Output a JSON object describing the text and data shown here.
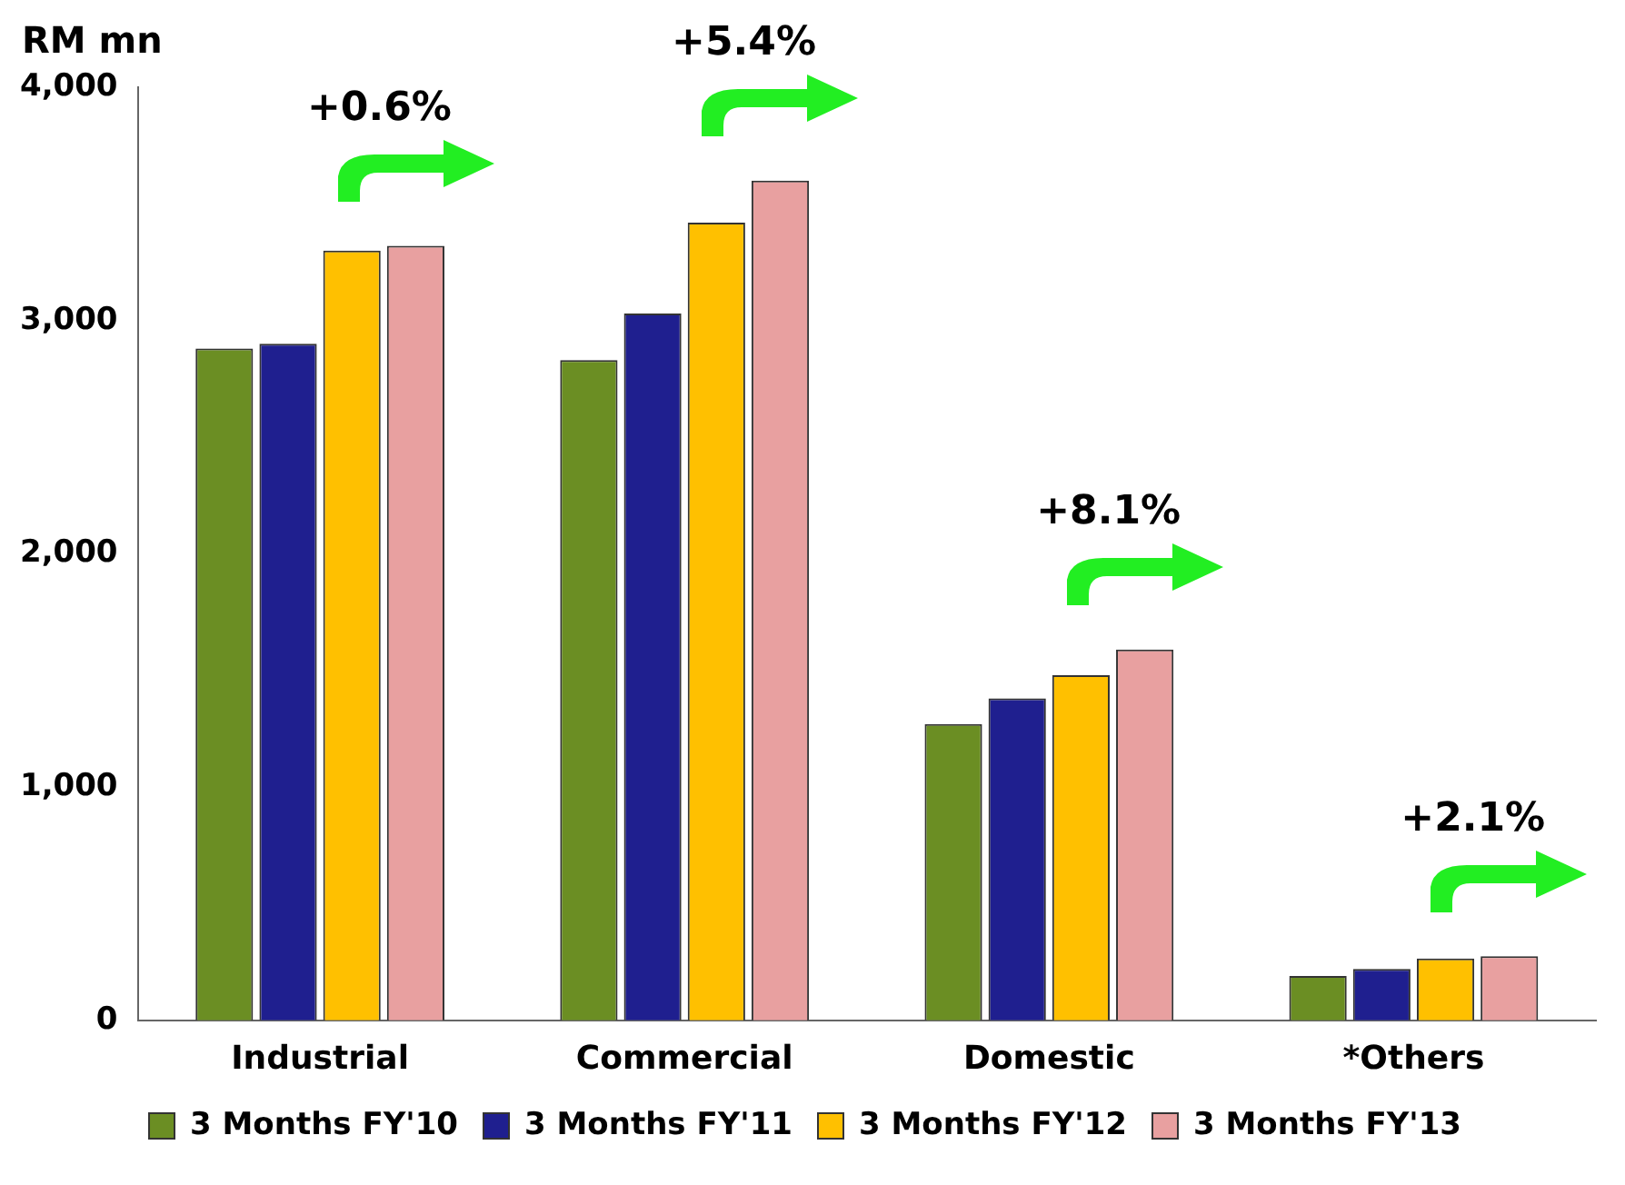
{
  "chart_data": {
    "type": "bar",
    "ylabel": "RM mn",
    "categories": [
      "Industrial",
      "Commercial",
      "Domestic",
      "*Others"
    ],
    "series": [
      {
        "name": "3 Months FY'10",
        "color": "#6b8e23",
        "values": [
          2880,
          2830,
          1270,
          190
        ]
      },
      {
        "name": "3 Months FY'11",
        "color": "#1f1f8f",
        "values": [
          2900,
          3030,
          1380,
          220
        ]
      },
      {
        "name": "3 Months FY'12",
        "color": "#ffc000",
        "values": [
          3300,
          3420,
          1480,
          265
        ]
      },
      {
        "name": "3 Months FY'13",
        "color": "#e8a0a0",
        "values": [
          3320,
          3600,
          1590,
          275
        ]
      }
    ],
    "ylim": [
      0,
      4000
    ],
    "yticks": [
      {
        "value": 0,
        "label": "0"
      },
      {
        "value": 1000,
        "label": "1,000"
      },
      {
        "value": 2000,
        "label": "2,000"
      },
      {
        "value": 3000,
        "label": "3,000"
      },
      {
        "value": 4000,
        "label": "4,000"
      }
    ],
    "annotations": [
      "+0.6%",
      "+5.4%",
      "+8.1%",
      "+2.1%"
    ],
    "legend": "bottom",
    "grid": false
  }
}
